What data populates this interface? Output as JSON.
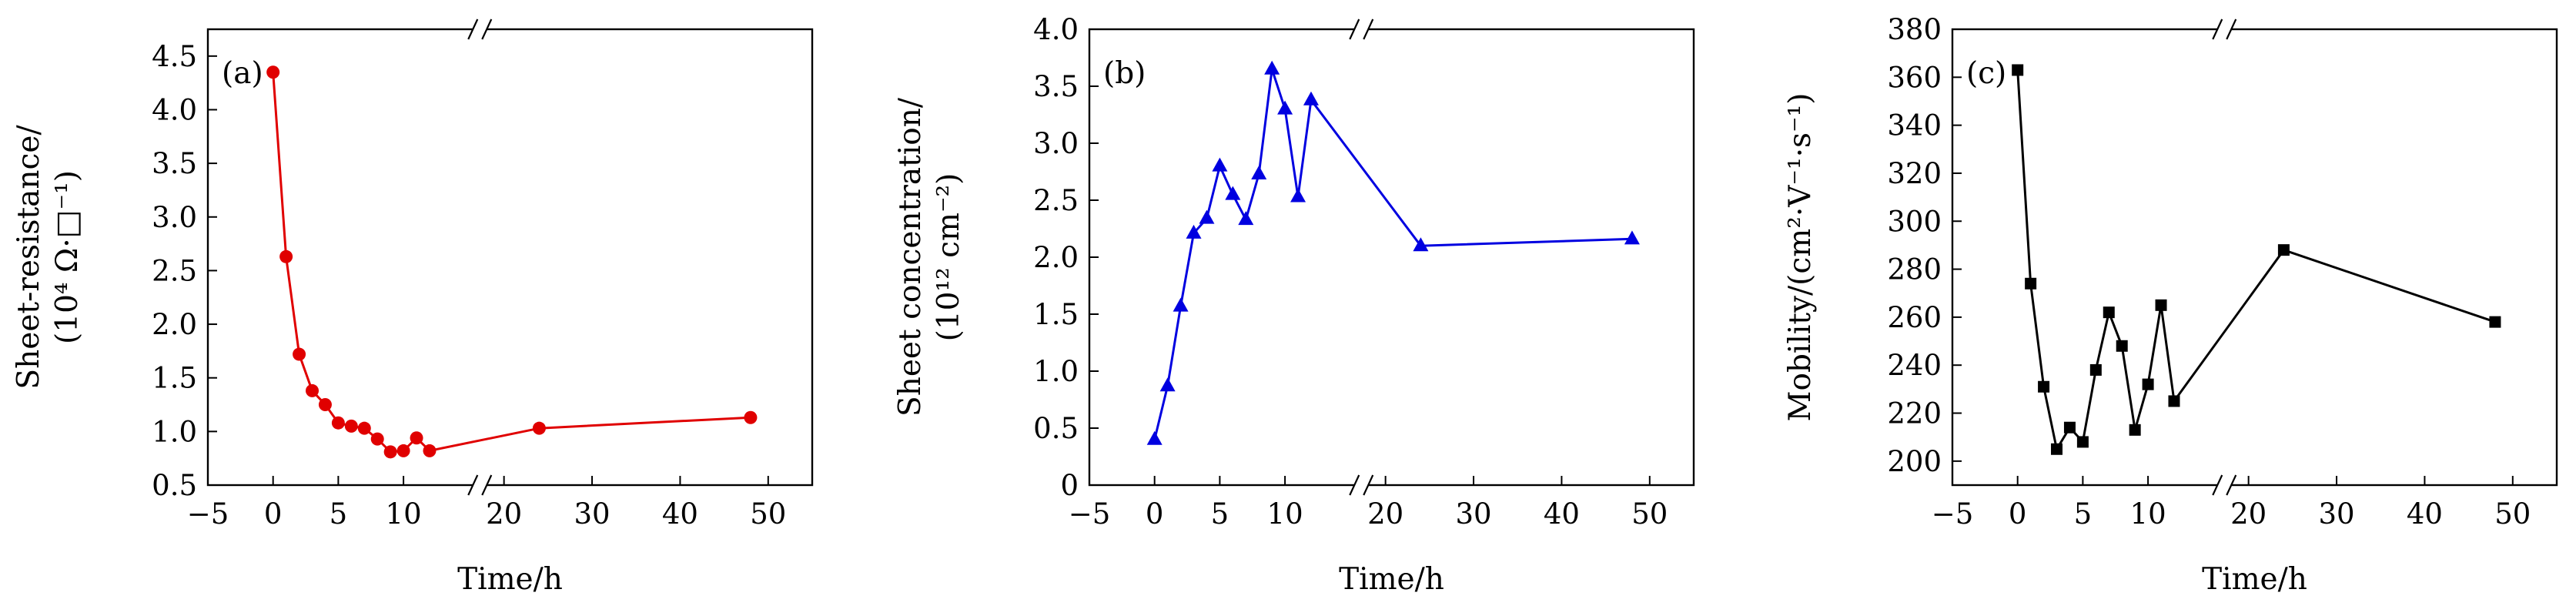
{
  "chart_data": [
    {
      "type": "line",
      "panel_label": "(a)",
      "xlabel": "Time/h",
      "ylabel_line1": "Sheet-resistance/",
      "ylabel_line2": "(10⁴ Ω·□⁻¹)",
      "x_axis_break": "between 14 and 20",
      "xlim": [
        -5,
        55
      ],
      "x_ticks": [
        "−5",
        "0",
        "5",
        "10",
        "20",
        "30",
        "40",
        "50"
      ],
      "ylim": [
        0.5,
        4.75
      ],
      "y_ticks": [
        "0.5",
        "1.0",
        "1.5",
        "2.0",
        "2.5",
        "3.0",
        "3.5",
        "4.0",
        "4.5"
      ],
      "color": "#e00000",
      "marker": "circle",
      "series": [
        {
          "x": [
            0,
            1,
            2,
            3,
            4,
            5,
            6,
            7,
            8,
            9,
            10,
            11,
            12,
            24,
            48
          ],
          "y": [
            4.35,
            2.63,
            1.72,
            1.38,
            1.25,
            1.08,
            1.05,
            1.03,
            0.93,
            0.81,
            0.82,
            0.94,
            0.82,
            1.03,
            1.13
          ]
        }
      ]
    },
    {
      "type": "line",
      "panel_label": "(b)",
      "xlabel": "Time/h",
      "ylabel_line1": "Sheet concentration/",
      "ylabel_line2": "(10¹² cm⁻²)",
      "x_axis_break": "between 14 and 20",
      "xlim": [
        -5,
        55
      ],
      "x_ticks": [
        "−5",
        "0",
        "5",
        "10",
        "20",
        "30",
        "40",
        "50"
      ],
      "ylim": [
        0,
        4.0
      ],
      "y_ticks": [
        "0",
        "0.5",
        "1.0",
        "1.5",
        "2.0",
        "2.5",
        "3.0",
        "3.5",
        "4.0"
      ],
      "color": "#0000e0",
      "marker": "triangle",
      "series": [
        {
          "x": [
            0,
            1,
            2,
            3,
            4,
            5,
            6,
            7,
            8,
            9,
            10,
            11,
            12,
            24,
            48
          ],
          "y": [
            0.4,
            0.87,
            1.57,
            2.21,
            2.34,
            2.8,
            2.55,
            2.33,
            2.73,
            3.65,
            3.3,
            2.53,
            3.38,
            2.1,
            2.16
          ]
        }
      ]
    },
    {
      "type": "line",
      "panel_label": "(c)",
      "xlabel": "Time/h",
      "ylabel_line1": "Mobility/(cm²·V⁻¹·s⁻¹)",
      "ylabel_line2": "",
      "x_axis_break": "between 14 and 20",
      "xlim": [
        -5,
        55
      ],
      "x_ticks": [
        "−5",
        "0",
        "5",
        "10",
        "20",
        "30",
        "40",
        "50"
      ],
      "ylim": [
        190,
        380
      ],
      "y_ticks": [
        "200",
        "220",
        "240",
        "260",
        "280",
        "300",
        "320",
        "340",
        "360",
        "380"
      ],
      "color": "#000000",
      "marker": "square",
      "series": [
        {
          "x": [
            0,
            1,
            2,
            3,
            4,
            5,
            6,
            7,
            8,
            9,
            10,
            11,
            12,
            24,
            48
          ],
          "y": [
            363,
            274,
            231,
            205,
            214,
            208,
            238,
            262,
            248,
            213,
            232,
            265,
            225,
            288,
            258
          ]
        }
      ]
    }
  ]
}
